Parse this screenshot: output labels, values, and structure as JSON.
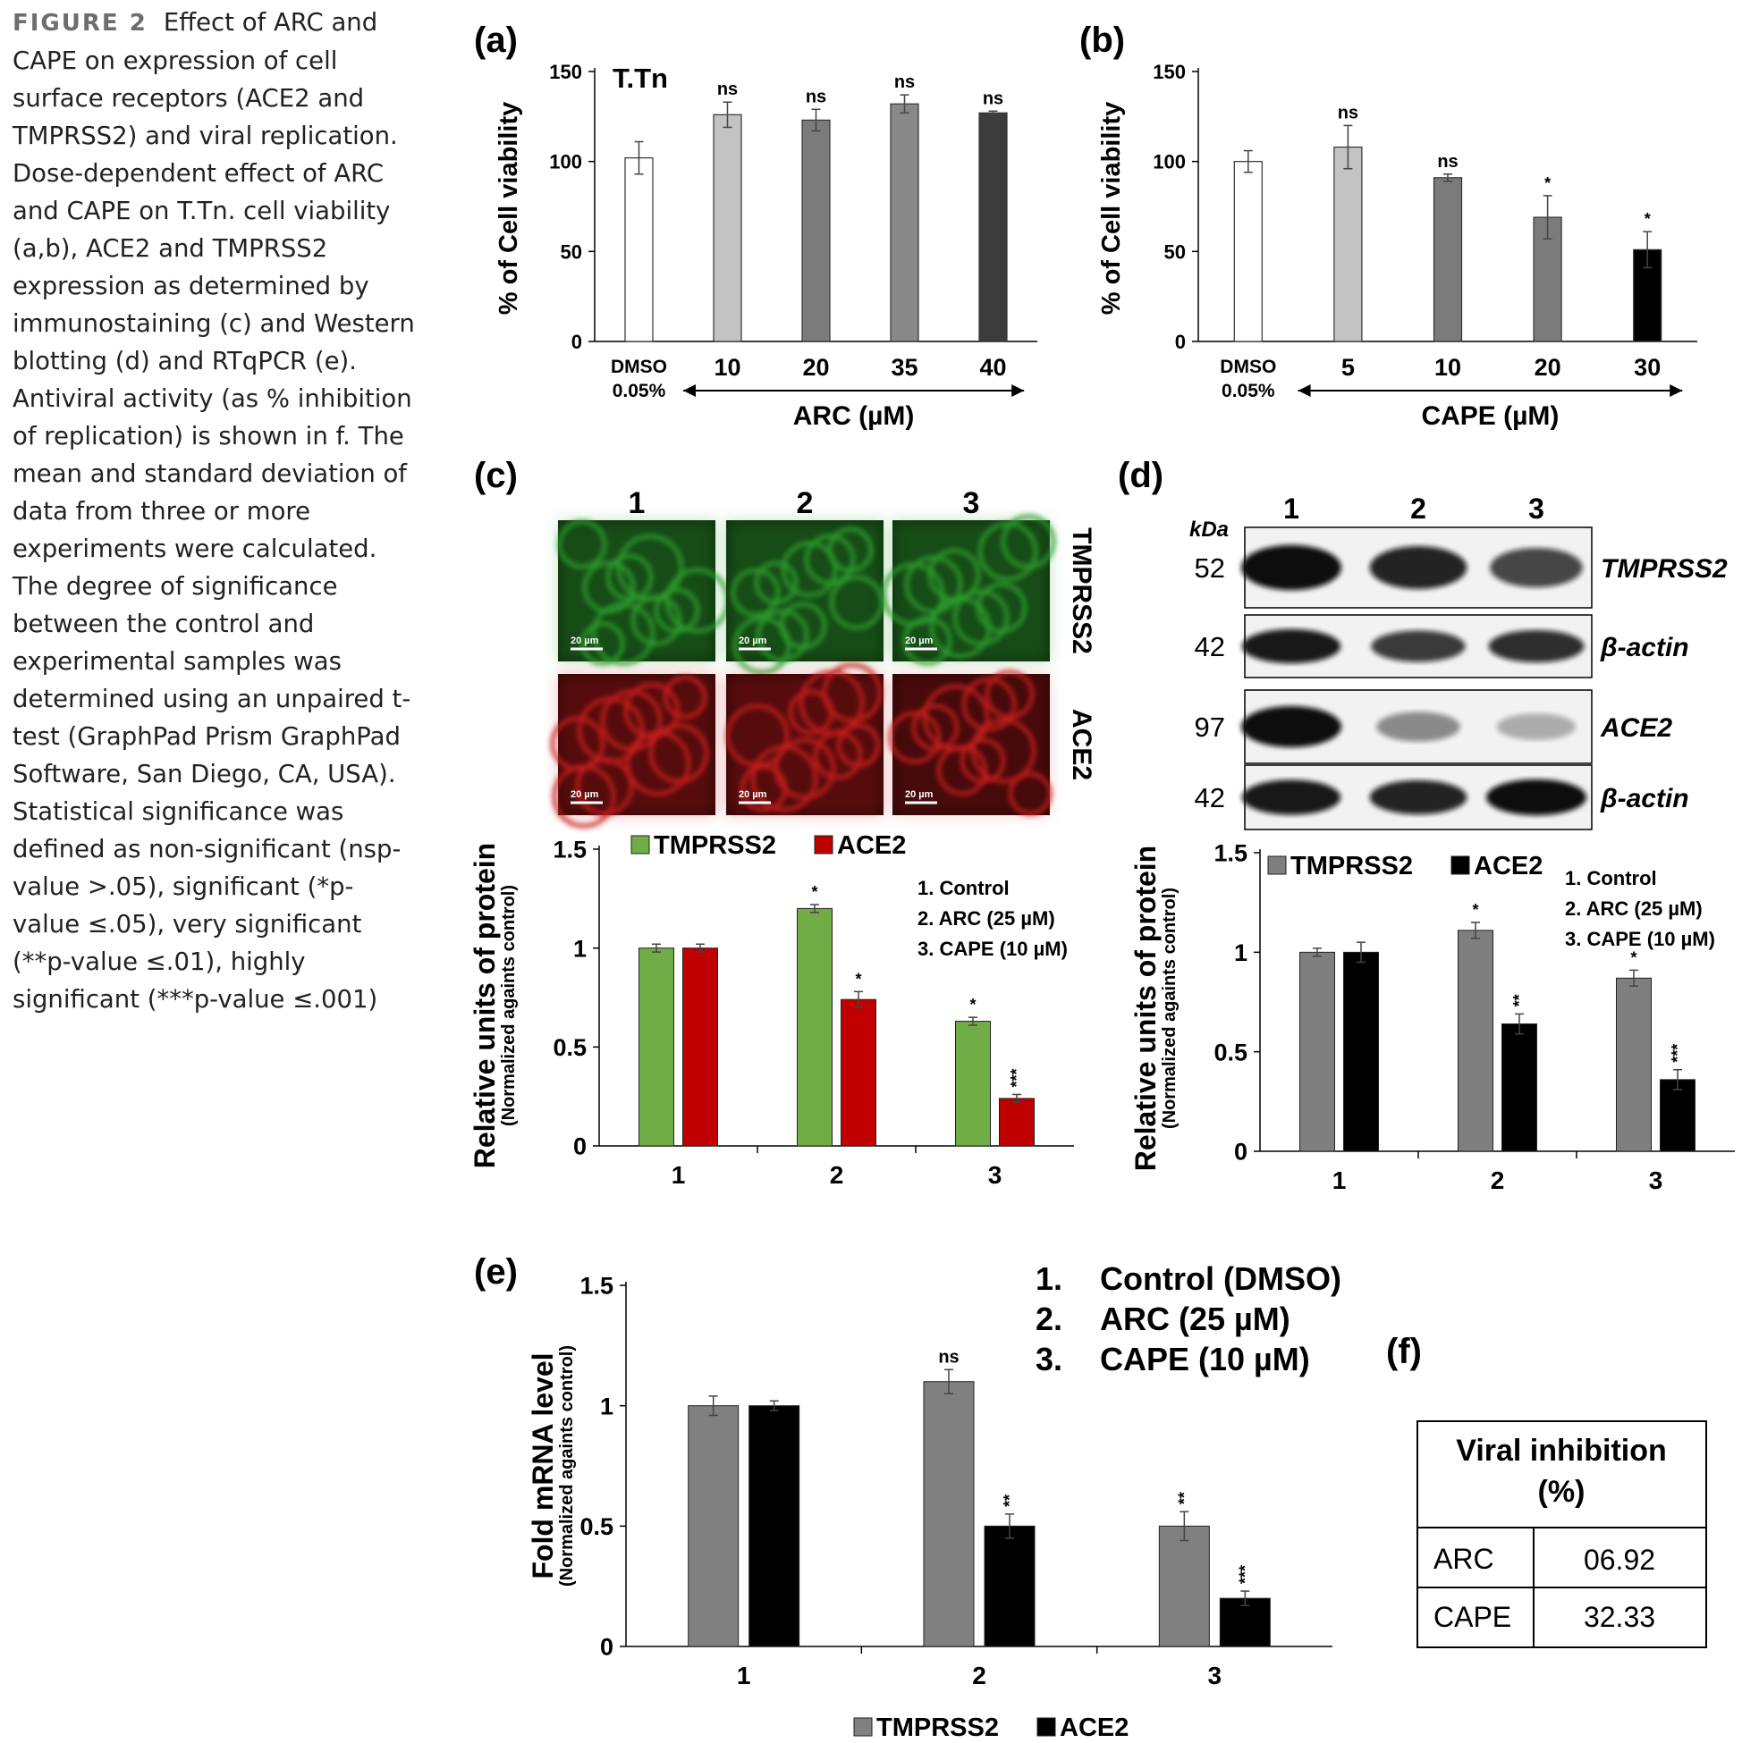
{
  "caption": {
    "figure_label": "FIGURE 2",
    "text": "Effect of ARC and CAPE on expression of cell surface receptors (ACE2 and TMPRSS2) and viral replication. Dose-dependent effect of ARC and CAPE on T.Tn. cell viability (a,b), ACE2 and TMPRSS2 expression as determined by immunostaining (c) and Western blotting (d) and RTqPCR (e). Antiviral activity (as % inhibition of replication) is shown in f. The mean and standard deviation of data from three or more experiments were calculated. The degree of significance between the control and experimental samples was determined using an unpaired t-test (GraphPad Prism GraphPad Software, San Diego, CA, USA). Statistical significance was defined as non-significant (nsp-value >.05), significant (*p-value ≤.05), very significant (**p-value ≤.01), highly significant (***p-value ≤.001)"
  },
  "panels": {
    "a": "(a)",
    "b": "(b)",
    "c": "(c)",
    "d": "(d)",
    "e": "(e)",
    "f": "(f)"
  },
  "images_c": {
    "columns": [
      "1",
      "2",
      "3"
    ],
    "rows": [
      "TMPRSS2",
      "ACE2"
    ],
    "scale_bar": "20 µm",
    "colors": {
      "green": "#2f9e2f",
      "red": "#c81e1e"
    }
  },
  "blot_d": {
    "unit": "kDa",
    "columns": [
      "1",
      "2",
      "3"
    ],
    "rows": [
      {
        "kda": "52",
        "label": "TMPRSS2"
      },
      {
        "kda": "42",
        "label": "β-actin"
      },
      {
        "kda": "97",
        "label": "ACE2"
      },
      {
        "kda": "42",
        "label": "β-actin"
      }
    ]
  },
  "legend_c": [
    "1. Control",
    "2. ARC (25 µM)",
    "3. CAPE (10 µM)"
  ],
  "legend_d": [
    "1. Control",
    "2. ARC (25 µM)",
    "3. CAPE (10 µM)"
  ],
  "legend_e": [
    {
      "num": "1.",
      "text": "Control (DMSO)"
    },
    {
      "num": "2.",
      "text": "ARC (25 µM)"
    },
    {
      "num": "3.",
      "text": "CAPE (10 µM)"
    }
  ],
  "table_f": {
    "header_line1": "Viral inhibition",
    "header_line2": "(%)",
    "rows": [
      {
        "name": "ARC",
        "value": "06.92"
      },
      {
        "name": "CAPE",
        "value": "32.33"
      }
    ]
  },
  "chart_data": [
    {
      "id": "a",
      "type": "bar",
      "title": "T.Tn",
      "ylabel": "% of Cell viability",
      "xlabel": "ARC (µM)",
      "ylim": [
        0,
        150
      ],
      "yticks": [
        0,
        50,
        100,
        150
      ],
      "categories": [
        "DMSO 0.05%",
        "10",
        "20",
        "35",
        "40"
      ],
      "values": [
        102,
        126,
        123,
        132,
        127
      ],
      "errors": [
        9,
        7,
        6,
        5,
        1
      ],
      "annotations": [
        "",
        "ns",
        "ns",
        "ns",
        "ns"
      ],
      "colors": [
        "#ffffff",
        "#c3c3c3",
        "#7b7b7b",
        "#888888",
        "#3c3c3c"
      ]
    },
    {
      "id": "b",
      "type": "bar",
      "ylabel": "% of Cell viability",
      "xlabel": "CAPE (µM)",
      "ylim": [
        0,
        150
      ],
      "yticks": [
        0,
        50,
        100,
        150
      ],
      "categories": [
        "DMSO 0.05%",
        "5",
        "10",
        "20",
        "30"
      ],
      "values": [
        100,
        108,
        91,
        69,
        51
      ],
      "errors": [
        6,
        12,
        2,
        12,
        10
      ],
      "annotations": [
        "",
        "ns",
        "ns",
        "*",
        "*"
      ],
      "colors": [
        "#ffffff",
        "#c3c3c3",
        "#7b7b7b",
        "#7b7b7b",
        "#000000"
      ]
    },
    {
      "id": "c",
      "type": "bar",
      "ylabel": "Relative units of protein",
      "ylabel2": "(Normalized againts control)",
      "ylim": [
        0,
        1.5
      ],
      "yticks": [
        0,
        0.5,
        1,
        1.5
      ],
      "categories": [
        "1",
        "2",
        "3"
      ],
      "series": [
        {
          "name": "TMPRSS2",
          "values": [
            1.0,
            1.2,
            0.63
          ],
          "errors": [
            0.02,
            0.02,
            0.02
          ],
          "annotations": [
            "",
            "*",
            "*"
          ],
          "color": "#70ad47"
        },
        {
          "name": "ACE2",
          "values": [
            1.0,
            0.74,
            0.24
          ],
          "errors": [
            0.02,
            0.04,
            0.02
          ],
          "annotations": [
            "",
            "*",
            "***"
          ],
          "color": "#c00000"
        }
      ]
    },
    {
      "id": "d",
      "type": "bar",
      "ylabel": "Relative units of protein",
      "ylabel2": "(Normalized againts control)",
      "ylim": [
        0,
        1.5
      ],
      "yticks": [
        0,
        0.5,
        1,
        1.5
      ],
      "categories": [
        "1",
        "2",
        "3"
      ],
      "series": [
        {
          "name": "TMPRSS2",
          "values": [
            1.0,
            1.11,
            0.87
          ],
          "errors": [
            0.02,
            0.04,
            0.04
          ],
          "annotations": [
            "",
            "*",
            "*"
          ],
          "color": "#7f7f7f"
        },
        {
          "name": "ACE2",
          "values": [
            1.0,
            0.64,
            0.36
          ],
          "errors": [
            0.05,
            0.05,
            0.05
          ],
          "annotations": [
            "",
            "**",
            "***"
          ],
          "color": "#000000"
        }
      ]
    },
    {
      "id": "e",
      "type": "bar",
      "ylabel": "Fold mRNA level",
      "ylabel2": "(Normalized againts control)",
      "ylim": [
        0,
        1.5
      ],
      "yticks": [
        0,
        0.5,
        1,
        1.5
      ],
      "categories": [
        "1",
        "2",
        "3"
      ],
      "series": [
        {
          "name": "TMPRSS2",
          "values": [
            1.0,
            1.1,
            0.5
          ],
          "errors": [
            0.04,
            0.05,
            0.06
          ],
          "annotations": [
            "",
            "ns",
            "**"
          ],
          "color": "#808080"
        },
        {
          "name": "ACE2",
          "values": [
            1.0,
            0.5,
            0.2
          ],
          "errors": [
            0.02,
            0.05,
            0.03
          ],
          "annotations": [
            "",
            "**",
            "***"
          ],
          "color": "#000000"
        }
      ]
    }
  ]
}
